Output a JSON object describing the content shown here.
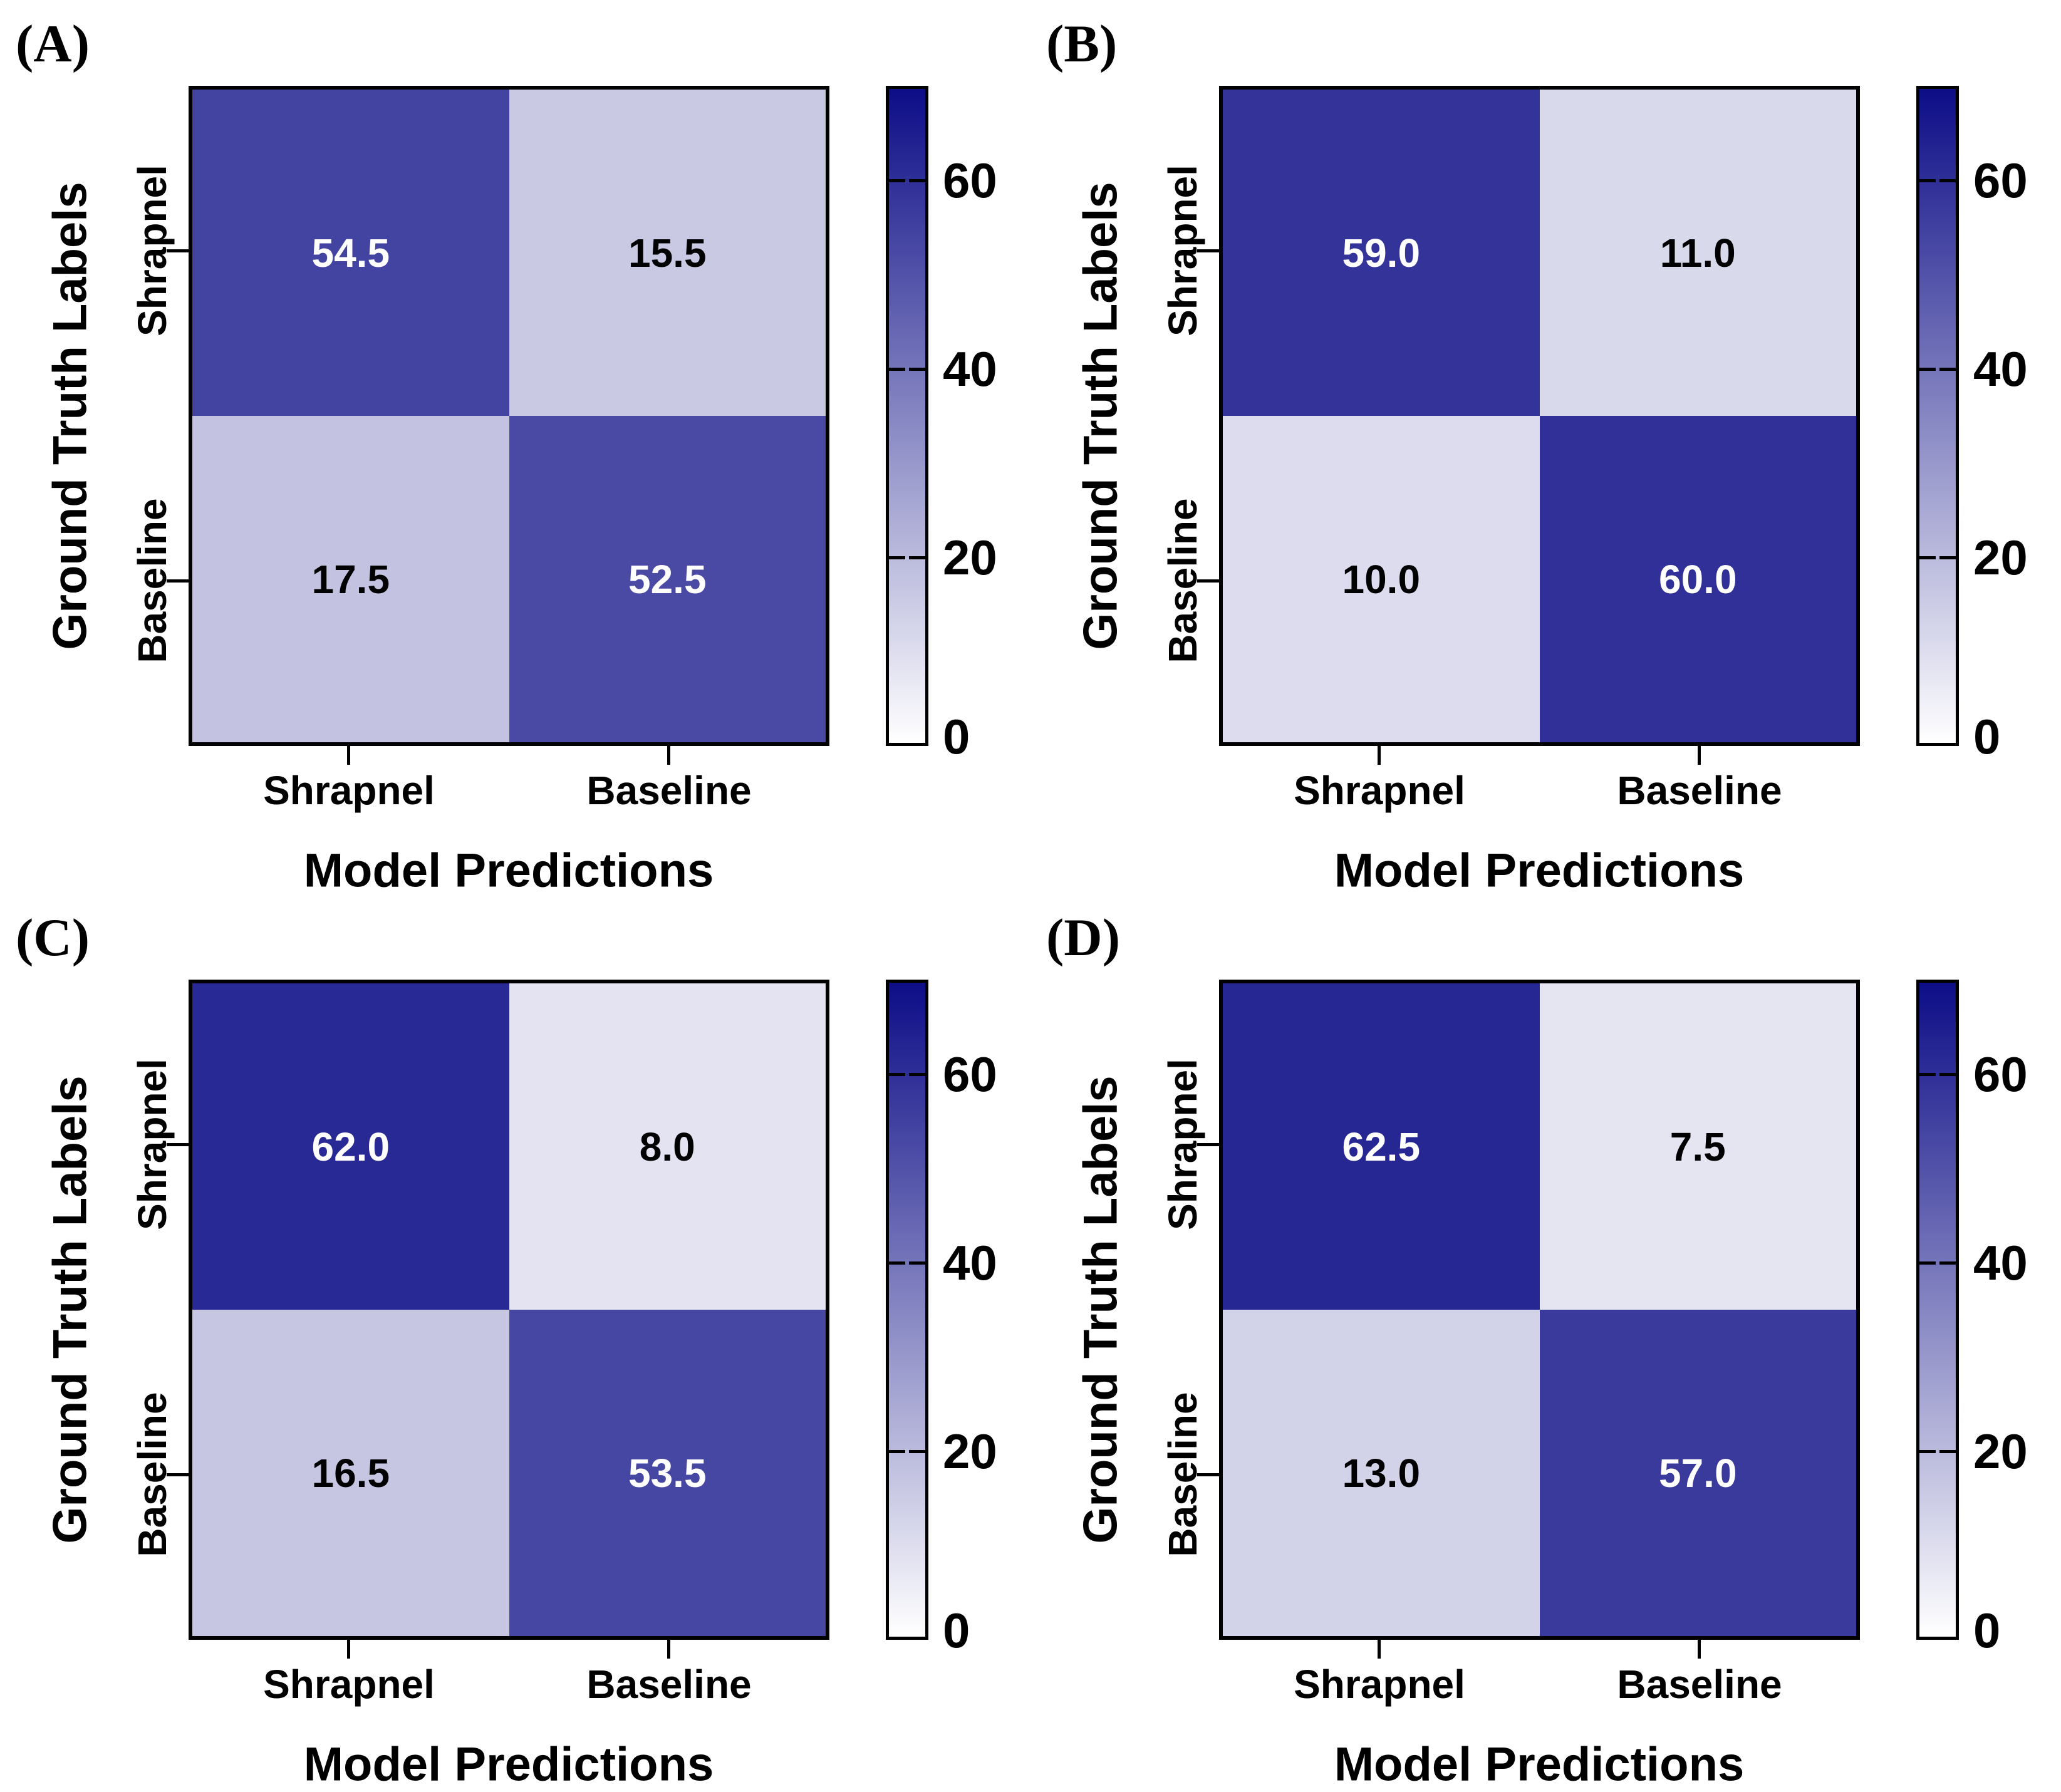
{
  "figure": {
    "background": "#FFFFFF"
  },
  "colormap": {
    "vmin": 0,
    "vmax": 70,
    "min_color": "#FFFFFF",
    "max_color": "#0D0D87",
    "text_switch": 35,
    "border_color": "#000000"
  },
  "axes": {
    "x_title": "Model Predictions",
    "y_title": "Ground Truth Labels",
    "x_tick_labels": [
      "Shrapnel",
      "Baseline"
    ],
    "y_tick_labels": [
      "Shrapnel",
      "Baseline"
    ],
    "colorbar_tick_labels": [
      "60",
      "40",
      "20",
      "0"
    ]
  },
  "panels": [
    {
      "label": "(A)",
      "cells": [
        "54.5",
        "15.5",
        "17.5",
        "52.5"
      ]
    },
    {
      "label": "(B)",
      "cells": [
        "59.0",
        "11.0",
        "10.0",
        "60.0"
      ]
    },
    {
      "label": "(C)",
      "cells": [
        "62.0",
        "8.0",
        "16.5",
        "53.5"
      ]
    },
    {
      "label": "(D)",
      "cells": [
        "62.5",
        "7.5",
        "13.0",
        "57.0"
      ]
    }
  ],
  "chart_data": [
    {
      "type": "heatmap",
      "panel": "(A)",
      "xlabel": "Model Predictions",
      "ylabel": "Ground Truth Labels",
      "x_categories": [
        "Shrapnel",
        "Baseline"
      ],
      "y_categories": [
        "Shrapnel",
        "Baseline"
      ],
      "values": [
        [
          54.5,
          15.5
        ],
        [
          17.5,
          52.5
        ]
      ],
      "colorbar": {
        "range": [
          0,
          70
        ],
        "ticks": [
          0,
          20,
          40,
          60
        ]
      },
      "legend_position": "right",
      "grid": false
    },
    {
      "type": "heatmap",
      "panel": "(B)",
      "xlabel": "Model Predictions",
      "ylabel": "Ground Truth Labels",
      "x_categories": [
        "Shrapnel",
        "Baseline"
      ],
      "y_categories": [
        "Shrapnel",
        "Baseline"
      ],
      "values": [
        [
          59.0,
          11.0
        ],
        [
          10.0,
          60.0
        ]
      ],
      "colorbar": {
        "range": [
          0,
          70
        ],
        "ticks": [
          0,
          20,
          40,
          60
        ]
      },
      "legend_position": "right",
      "grid": false
    },
    {
      "type": "heatmap",
      "panel": "(C)",
      "xlabel": "Model Predictions",
      "ylabel": "Ground Truth Labels",
      "x_categories": [
        "Shrapnel",
        "Baseline"
      ],
      "y_categories": [
        "Shrapnel",
        "Baseline"
      ],
      "values": [
        [
          62.0,
          8.0
        ],
        [
          16.5,
          53.5
        ]
      ],
      "colorbar": {
        "range": [
          0,
          70
        ],
        "ticks": [
          0,
          20,
          40,
          60
        ]
      },
      "legend_position": "right",
      "grid": false
    },
    {
      "type": "heatmap",
      "panel": "(D)",
      "xlabel": "Model Predictions",
      "ylabel": "Ground Truth Labels",
      "x_categories": [
        "Shrapnel",
        "Baseline"
      ],
      "y_categories": [
        "Shrapnel",
        "Baseline"
      ],
      "values": [
        [
          62.5,
          7.5
        ],
        [
          13.0,
          57.0
        ]
      ],
      "colorbar": {
        "range": [
          0,
          70
        ],
        "ticks": [
          0,
          20,
          40,
          60
        ]
      },
      "legend_position": "right",
      "grid": false
    }
  ]
}
